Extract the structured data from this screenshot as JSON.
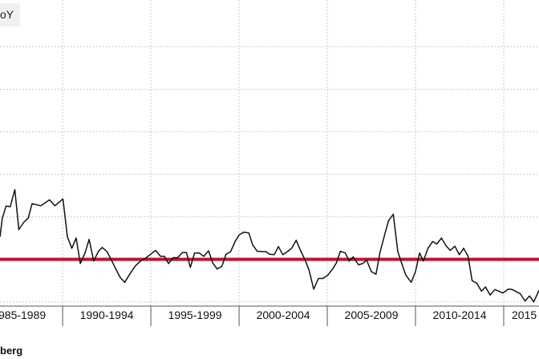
{
  "legend": {
    "label": "oY"
  },
  "source": "berg",
  "colors": {
    "series": "#111111",
    "reference": "#c0142f",
    "grid": "#cccccc"
  },
  "chart_data": {
    "type": "line",
    "title": "",
    "xlabel": "",
    "ylabel": "",
    "xlim": [
      1986.45,
      2017.0
    ],
    "ylim": [
      -1.1,
      6.1
    ],
    "grid": true,
    "y_gridlines": [
      -1,
      0,
      1,
      2,
      3,
      4,
      5
    ],
    "x_tick_boundaries": [
      1990,
      1995,
      2000,
      2005,
      2010,
      2015
    ],
    "x_tick_labels": [
      {
        "label": "985-1989",
        "center": 1987.5
      },
      {
        "label": "1990-1994",
        "center": 1992.5
      },
      {
        "label": "1995-1999",
        "center": 1997.5
      },
      {
        "label": "2000-2004",
        "center": 2002.5
      },
      {
        "label": "2005-2009",
        "center": 2007.5
      },
      {
        "label": "2010-2014",
        "center": 2012.5
      },
      {
        "label": "2015",
        "center": 2016.3
      }
    ],
    "reference_line": {
      "value": 0
    },
    "series": [
      {
        "name": "oY",
        "x": [
          1986.45,
          1986.58,
          1986.79,
          1987.03,
          1987.29,
          1987.52,
          1987.79,
          1988.05,
          1988.27,
          1988.76,
          1989.26,
          1989.56,
          1990.02,
          1990.27,
          1990.52,
          1990.77,
          1991.0,
          1991.27,
          1991.5,
          1991.76,
          1992.03,
          1992.24,
          1992.52,
          1992.79,
          1993.09,
          1993.27,
          1993.52,
          1993.8,
          1994.11,
          1994.41,
          1994.71,
          1995.02,
          1995.27,
          1995.55,
          1995.77,
          1996.0,
          1996.27,
          1996.53,
          1996.79,
          1997.02,
          1997.24,
          1997.48,
          1997.74,
          1998.0,
          1998.27,
          1998.5,
          1998.76,
          1999.03,
          1999.26,
          1999.52,
          1999.79,
          2000.02,
          2000.27,
          2000.55,
          2000.77,
          2001.03,
          2001.53,
          2001.73,
          2002.0,
          2002.23,
          2002.48,
          2002.76,
          2002.98,
          2003.24,
          2003.48,
          2003.74,
          2003.97,
          2004.23,
          2004.5,
          2004.76,
          2005.03,
          2005.3,
          2005.52,
          2005.74,
          2006.02,
          2006.24,
          2006.47,
          2006.77,
          2007.0,
          2007.23,
          2007.5,
          2007.76,
          2007.98,
          2008.24,
          2008.47,
          2008.74,
          2009.0,
          2009.2,
          2009.45,
          2009.76,
          2010.0,
          2010.23,
          2010.45,
          2010.71,
          2010.97,
          2011.21,
          2011.47,
          2011.73,
          2011.97,
          2012.23,
          2012.48,
          2012.73,
          2012.98,
          2013.21,
          2013.47,
          2013.74,
          2013.97,
          2014.23,
          2014.5,
          2014.95,
          2015.26,
          2015.48,
          2015.94,
          2016.21,
          2016.47,
          2016.7,
          2017.0
        ],
        "y": [
          0.53,
          0.97,
          1.25,
          1.24,
          1.64,
          0.7,
          0.87,
          0.97,
          1.31,
          1.26,
          1.4,
          1.26,
          1.42,
          0.53,
          0.26,
          0.5,
          -0.1,
          0.15,
          0.47,
          -0.04,
          0.19,
          0.28,
          0.18,
          -0.04,
          -0.29,
          -0.43,
          -0.54,
          -0.35,
          -0.16,
          -0.04,
          0.03,
          0.13,
          0.21,
          0.07,
          0.07,
          -0.1,
          0.04,
          0.04,
          0.16,
          0.16,
          -0.19,
          0.15,
          0.15,
          0.07,
          0.2,
          -0.08,
          -0.23,
          -0.16,
          0.12,
          0.18,
          0.43,
          0.58,
          0.64,
          0.62,
          0.34,
          0.19,
          0.18,
          0.12,
          0.11,
          0.3,
          0.11,
          0.19,
          0.26,
          0.45,
          0.21,
          -0.01,
          -0.26,
          -0.7,
          -0.45,
          -0.45,
          -0.37,
          -0.23,
          -0.08,
          0.19,
          0.15,
          -0.04,
          0.06,
          -0.13,
          -0.1,
          -0.02,
          -0.29,
          -0.35,
          0.15,
          0.56,
          0.91,
          1.06,
          0.18,
          -0.07,
          -0.37,
          -0.54,
          -0.29,
          0.15,
          -0.04,
          0.26,
          0.42,
          0.36,
          0.5,
          0.32,
          0.21,
          0.31,
          0.11,
          0.26,
          0.07,
          -0.5,
          -0.56,
          -0.75,
          -0.65,
          -0.84,
          -0.71,
          -0.79,
          -0.7,
          -0.71,
          -0.81,
          -0.98,
          -0.86,
          -1.0,
          -0.73
        ]
      }
    ]
  }
}
